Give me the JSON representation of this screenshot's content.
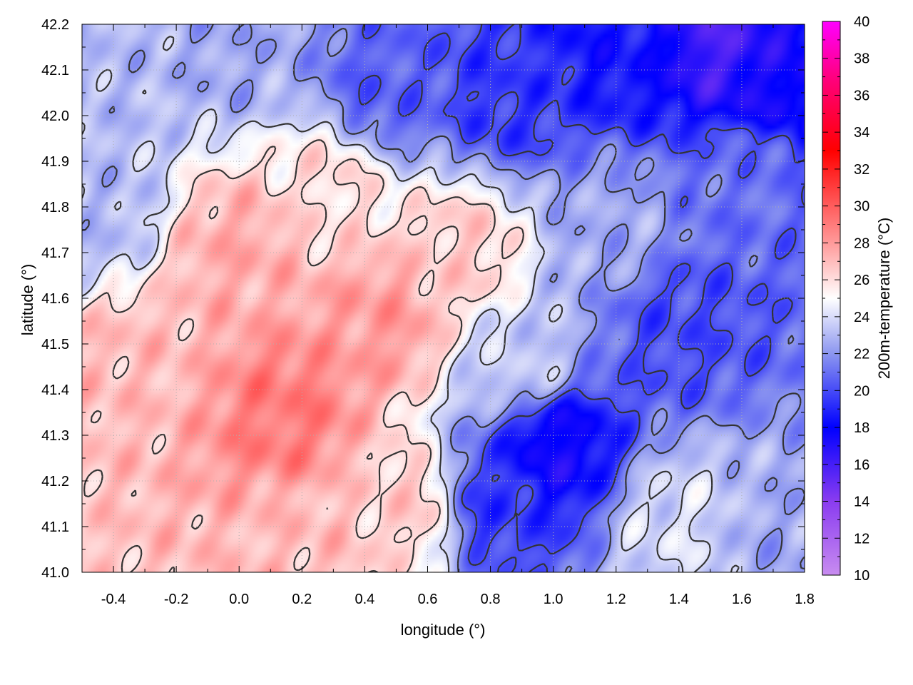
{
  "chart_data": {
    "type": "heatmap",
    "title": "",
    "xlabel": "longitude (°)",
    "ylabel": "latitude (°)",
    "colorbar_label": "200m-temperature (°C)",
    "xlim": [
      -0.5,
      1.8
    ],
    "ylim": [
      41.0,
      42.2
    ],
    "colorbar_range": [
      10,
      40
    ],
    "x_ticks": [
      -0.4,
      -0.2,
      0.0,
      0.2,
      0.4,
      0.6,
      0.8,
      1.0,
      1.2,
      1.4,
      1.6,
      1.8
    ],
    "x_tick_labels": [
      "-0.4",
      "-0.2",
      "0.0",
      "0.2",
      "0.4",
      "0.6",
      "0.8",
      "1.0",
      "1.2",
      "1.4",
      "1.6",
      "1.8"
    ],
    "y_ticks": [
      41.0,
      41.1,
      41.2,
      41.3,
      41.4,
      41.5,
      41.6,
      41.7,
      41.8,
      41.9,
      42.0,
      42.1,
      42.2
    ],
    "y_tick_labels": [
      "41.0",
      "41.1",
      "41.2",
      "41.3",
      "41.4",
      "41.5",
      "41.6",
      "41.7",
      "41.8",
      "41.9",
      "42.0",
      "42.1",
      "42.2"
    ],
    "colorbar_ticks": [
      10,
      12,
      14,
      16,
      18,
      20,
      22,
      24,
      26,
      28,
      30,
      32,
      34,
      36,
      38,
      40
    ],
    "colorbar_tick_labels": [
      "10",
      "12",
      "14",
      "16",
      "18",
      "20",
      "22",
      "24",
      "26",
      "28",
      "30",
      "32",
      "34",
      "36",
      "38",
      "40"
    ],
    "colormap": [
      {
        "v": 10,
        "color": "#c88cf0"
      },
      {
        "v": 14,
        "color": "#8a3cf0"
      },
      {
        "v": 18,
        "color": "#0000ff"
      },
      {
        "v": 22,
        "color": "#8c96f0"
      },
      {
        "v": 25,
        "color": "#ffffff"
      },
      {
        "v": 28,
        "color": "#ff9a9a"
      },
      {
        "v": 33,
        "color": "#ff0000"
      },
      {
        "v": 37,
        "color": "#ff0080"
      },
      {
        "v": 40,
        "color": "#ff00ff"
      }
    ],
    "grid": true,
    "temperature_centers": [
      {
        "lon": 0.15,
        "lat": 41.35,
        "t": 29.0
      },
      {
        "lon": 0.45,
        "lat": 41.55,
        "t": 28.0
      },
      {
        "lon": 0.0,
        "lat": 41.7,
        "t": 27.5
      },
      {
        "lon": -0.35,
        "lat": 41.45,
        "t": 27.0
      },
      {
        "lon": 0.7,
        "lat": 41.7,
        "t": 26.5
      },
      {
        "lon": 0.55,
        "lat": 41.15,
        "t": 26.5
      },
      {
        "lon": 0.2,
        "lat": 41.05,
        "t": 27.0
      },
      {
        "lon": -0.45,
        "lat": 42.1,
        "t": 23.0
      },
      {
        "lon": 0.0,
        "lat": 42.15,
        "t": 22.5
      },
      {
        "lon": 0.45,
        "lat": 42.05,
        "t": 20.5
      },
      {
        "lon": 0.85,
        "lat": 42.05,
        "t": 19.5
      },
      {
        "lon": 1.2,
        "lat": 42.15,
        "t": 18.5
      },
      {
        "lon": 1.55,
        "lat": 42.15,
        "t": 16.0
      },
      {
        "lon": 1.7,
        "lat": 42.1,
        "t": 17.5
      },
      {
        "lon": 1.4,
        "lat": 41.55,
        "t": 20.0
      },
      {
        "lon": 1.6,
        "lat": 41.85,
        "t": 21.0
      },
      {
        "lon": 1.0,
        "lat": 41.28,
        "t": 17.5
      },
      {
        "lon": 0.8,
        "lat": 41.15,
        "t": 19.5
      },
      {
        "lon": 1.4,
        "lat": 41.1,
        "t": 24.0
      },
      {
        "lon": 1.7,
        "lat": 41.05,
        "t": 22.5
      },
      {
        "lon": 1.2,
        "lat": 41.75,
        "t": 22.5
      },
      {
        "lon": 0.9,
        "lat": 41.45,
        "t": 23.5
      },
      {
        "lon": -0.45,
        "lat": 41.8,
        "t": 23.0
      },
      {
        "lon": 0.3,
        "lat": 41.85,
        "t": 26.0
      }
    ]
  }
}
